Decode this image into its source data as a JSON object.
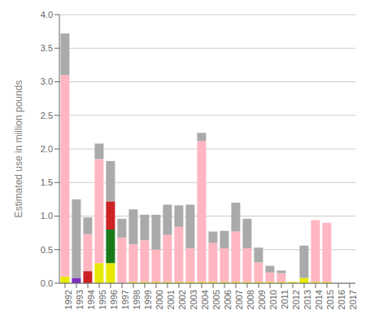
{
  "chart_data": {
    "type": "bar",
    "stacked": true,
    "grid": true,
    "ylabel": "Estimated use in million pounds",
    "categories": [
      "1992",
      "1993",
      "1994",
      "1995",
      "1996",
      "1997",
      "1998",
      "1999",
      "2000",
      "2001",
      "2002",
      "2003",
      "2004",
      "2005",
      "2006",
      "2007",
      "2008",
      "2009",
      "2010",
      "2011",
      "2012",
      "2013",
      "2014",
      "2015",
      "2016",
      "2017"
    ],
    "series": [
      {
        "color": "#e8e800",
        "values": [
          0.1,
          0.0,
          0.0,
          0.3,
          0.3,
          0.0,
          0.02,
          0.02,
          0.02,
          0.02,
          0.02,
          0.02,
          0.02,
          0.02,
          0.02,
          0.02,
          0.02,
          0.02,
          0.02,
          0.02,
          0.02,
          0.08,
          0.02,
          0.02,
          0.0,
          0.0
        ]
      },
      {
        "color": "#1a7a1a",
        "values": [
          0.0,
          0.0,
          0.0,
          0.0,
          0.5,
          0.0,
          0.0,
          0.0,
          0.0,
          0.0,
          0.0,
          0.0,
          0.0,
          0.0,
          0.0,
          0.0,
          0.0,
          0.0,
          0.0,
          0.0,
          0.0,
          0.0,
          0.0,
          0.0,
          0.0,
          0.0
        ]
      },
      {
        "color": "#cc2222",
        "values": [
          0.0,
          0.0,
          0.18,
          0.0,
          0.42,
          0.0,
          0.0,
          0.0,
          0.0,
          0.0,
          0.0,
          0.0,
          0.0,
          0.0,
          0.0,
          0.0,
          0.0,
          0.0,
          0.0,
          0.0,
          0.0,
          0.0,
          0.0,
          0.0,
          0.0,
          0.0
        ]
      },
      {
        "color": "#7b2fbe",
        "values": [
          0.0,
          0.08,
          0.0,
          0.0,
          0.0,
          0.0,
          0.0,
          0.0,
          0.0,
          0.0,
          0.0,
          0.0,
          0.0,
          0.0,
          0.0,
          0.0,
          0.0,
          0.0,
          0.0,
          0.0,
          0.0,
          0.0,
          0.0,
          0.0,
          0.0,
          0.0
        ]
      },
      {
        "color": "#ffb6c1",
        "values": [
          3.0,
          0.0,
          0.55,
          1.55,
          0.0,
          0.68,
          0.56,
          0.62,
          0.48,
          0.7,
          0.82,
          0.5,
          2.1,
          0.58,
          0.5,
          0.75,
          0.5,
          0.29,
          0.14,
          0.13,
          0.0,
          0.0,
          0.92,
          0.88,
          0.0,
          0.0
        ]
      },
      {
        "color": "#aaaaaa",
        "values": [
          0.62,
          1.17,
          0.25,
          0.23,
          0.6,
          0.28,
          0.52,
          0.38,
          0.52,
          0.45,
          0.32,
          0.65,
          0.12,
          0.17,
          0.26,
          0.43,
          0.44,
          0.22,
          0.1,
          0.04,
          0.0,
          0.48,
          0.0,
          0.0,
          0.0,
          0.0
        ]
      }
    ],
    "ylim": [
      0,
      4.0
    ],
    "yticks": [
      {
        "value": 0,
        "label": "0.0"
      },
      0.5,
      {
        "value": 1,
        "label": "1.0"
      },
      1.5,
      {
        "value": 2,
        "label": "2.0"
      },
      2.5,
      {
        "value": 3,
        "label": "3.0"
      },
      3.5,
      {
        "value": 4,
        "label": "4.0"
      }
    ]
  }
}
